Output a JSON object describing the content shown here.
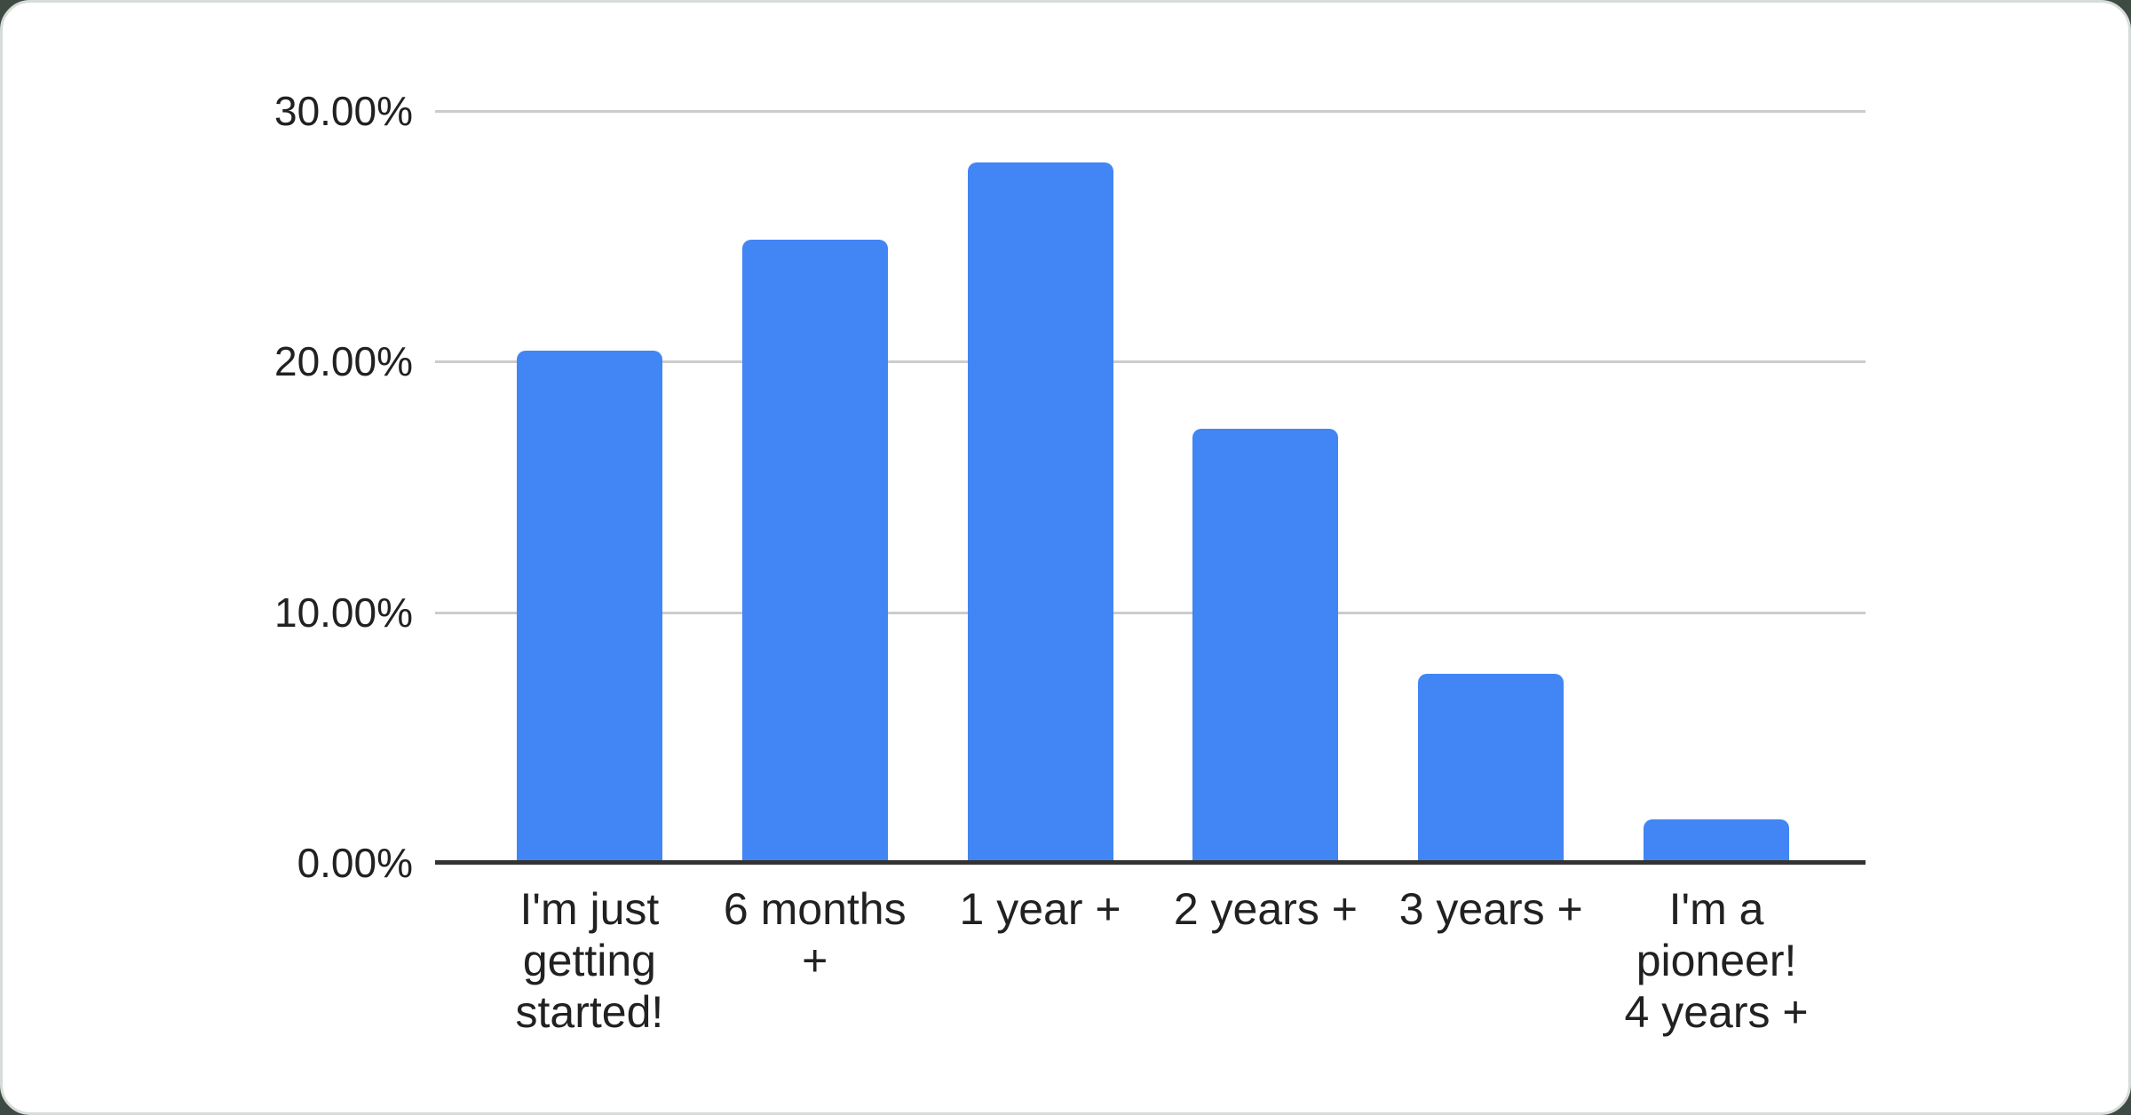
{
  "page": {
    "background_color": "#3e4b43",
    "card_background": "#ffffff",
    "card_border_color": "#d7dcd9"
  },
  "chart_data": {
    "type": "bar",
    "title": "",
    "categories": [
      "I'm just getting started!",
      "6 months +",
      "1 year +",
      "2 years +",
      "3 years +",
      "I'm a pioneer! 4 years +"
    ],
    "category_label_lines": [
      [
        "I'm just",
        "getting",
        "started!"
      ],
      [
        "6 months",
        "+"
      ],
      [
        "1 year +"
      ],
      [
        "2 years +"
      ],
      [
        "3 years +"
      ],
      [
        "I'm a",
        "pioneer!",
        "4 years +"
      ]
    ],
    "values": [
      20.45,
      24.88,
      27.95,
      17.32,
      7.55,
      1.73
    ],
    "value_unit": "percent",
    "xlabel": "",
    "ylabel": "",
    "ylim": [
      0,
      30
    ],
    "y_ticks": [
      {
        "value": 0,
        "label": "0.00%"
      },
      {
        "value": 10,
        "label": "10.00%"
      },
      {
        "value": 20,
        "label": "20.00%"
      },
      {
        "value": 30,
        "label": "30.00%"
      }
    ],
    "grid": true,
    "legend": "none",
    "colors": {
      "bar": "#4285f4",
      "gridline": "#cccccc",
      "axis_line": "#333333",
      "label_text": "#212121"
    }
  }
}
